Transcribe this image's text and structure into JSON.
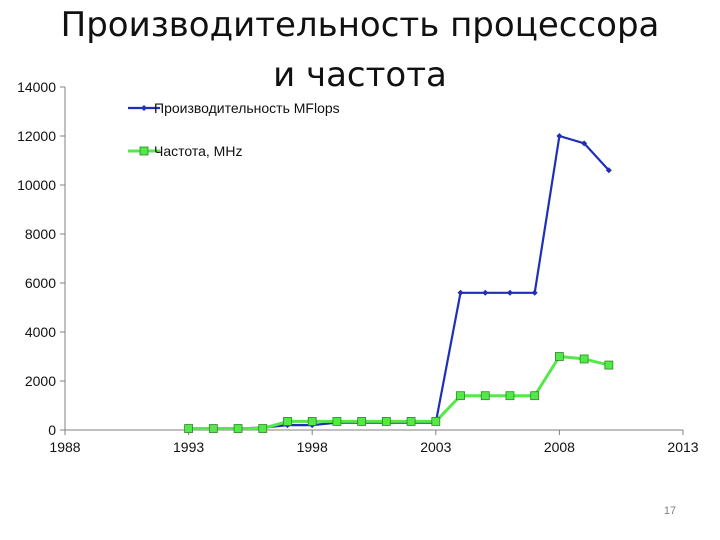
{
  "slide": {
    "title_line1": "Производительность процессора",
    "title_line2": "и частота",
    "page_number": "17"
  },
  "chart_data": {
    "type": "line",
    "title": "Производительность процессора и частота",
    "xlim": [
      1988,
      2013
    ],
    "ylim": [
      0,
      14000
    ],
    "x_ticks": [
      1988,
      1993,
      1998,
      2003,
      2008,
      2013
    ],
    "y_ticks": [
      0,
      2000,
      4000,
      6000,
      8000,
      10000,
      12000,
      14000
    ],
    "grid": false,
    "legend_position": "top-left",
    "series": [
      {
        "name": "Производительность MFlops",
        "color": "#1f2fb8",
        "marker": "diamond",
        "x": [
          1993,
          1994,
          1995,
          1996,
          1997,
          1998,
          1999,
          2000,
          2001,
          2002,
          2003,
          2004,
          2005,
          2006,
          2007,
          2008,
          2009,
          2010
        ],
        "y": [
          60,
          60,
          60,
          100,
          200,
          200,
          300,
          300,
          300,
          300,
          300,
          5600,
          5600,
          5600,
          5600,
          12000,
          11700,
          10600
        ]
      },
      {
        "name": "Частота, MHz",
        "color": "#55e84a",
        "marker": "square",
        "x": [
          1993,
          1994,
          1995,
          1996,
          1997,
          1998,
          1999,
          2000,
          2001,
          2002,
          2003,
          2004,
          2005,
          2006,
          2007,
          2008,
          2009,
          2010
        ],
        "y": [
          60,
          60,
          60,
          60,
          350,
          350,
          350,
          350,
          350,
          350,
          350,
          1400,
          1400,
          1400,
          1400,
          3000,
          2900,
          2650
        ]
      }
    ]
  }
}
